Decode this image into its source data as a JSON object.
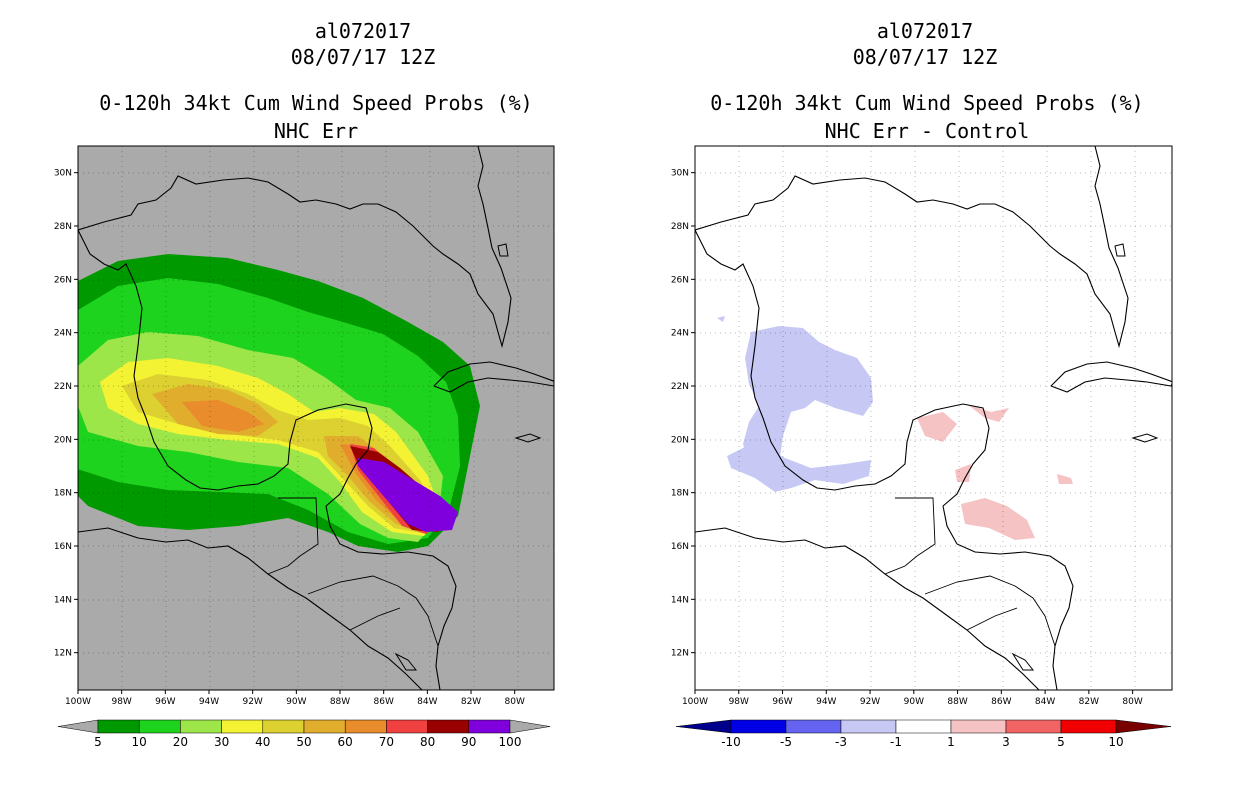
{
  "chart_data": [
    {
      "type": "heatmap",
      "title_lines": [
        "al072017",
        "08/07/17 12Z",
        "0-120h 34kt Cum Wind Speed Probs (%)",
        "NHC Err"
      ],
      "x_ticks": [
        "100W",
        "98W",
        "96W",
        "94W",
        "92W",
        "90W",
        "88W",
        "86W",
        "84W",
        "82W",
        "80W"
      ],
      "y_ticks": [
        "30N",
        "28N",
        "26N",
        "24N",
        "22N",
        "20N",
        "18N",
        "16N",
        "14N",
        "12N"
      ],
      "xlim": [
        -100,
        -78.2
      ],
      "ylim": [
        10.6,
        31.0
      ],
      "legend": {
        "labels": [
          "5",
          "10",
          "20",
          "30",
          "40",
          "50",
          "60",
          "70",
          "80",
          "90",
          "100"
        ],
        "colors": [
          "#aaaaaa",
          "#009a00",
          "#1ed31e",
          "#9de64a",
          "#f3f334",
          "#dcd130",
          "#e1ad2d",
          "#e98c2b",
          "#f04040",
          "#990000",
          "#7f00dc",
          "#aaaaaa"
        ]
      },
      "max_probability_region": "Yucatan Channel / NW Caribbean, near 85W 17.5N (90-100%)"
    },
    {
      "type": "heatmap",
      "title_lines": [
        "al072017",
        "08/07/17 12Z",
        "0-120h 34kt Cum Wind Speed Probs (%)",
        "NHC Err - Control"
      ],
      "x_ticks": [
        "100W",
        "98W",
        "96W",
        "94W",
        "92W",
        "90W",
        "88W",
        "86W",
        "84W",
        "82W",
        "80W"
      ],
      "y_ticks": [
        "30N",
        "28N",
        "26N",
        "24N",
        "22N",
        "20N",
        "18N",
        "16N",
        "14N",
        "12N"
      ],
      "xlim": [
        -100,
        -78.2
      ],
      "ylim": [
        10.6,
        31.0
      ],
      "legend": {
        "labels": [
          "-10",
          "-5",
          "-3",
          "-1",
          "1",
          "3",
          "5",
          "10"
        ],
        "colors": [
          "#00008c",
          "#0000e6",
          "#6464f0",
          "#c8c8f5",
          "#ffffff",
          "#f5c3c3",
          "#f06464",
          "#f00000",
          "#780000"
        ]
      },
      "difference_areas": "weak negative (-1 to -3) over W Gulf and Bay of Campeche; weak positive (1 to 3) over Yucatan and NW Caribbean"
    }
  ]
}
